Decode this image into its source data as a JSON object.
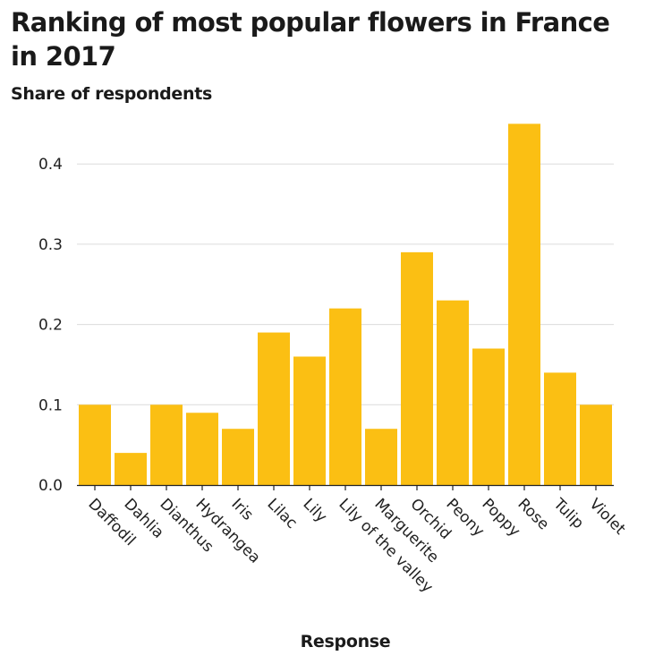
{
  "chart_data": {
    "type": "bar",
    "title": "Ranking of most popular flowers in France in 2017",
    "xlabel": "Response",
    "ylabel": "Share of respondents",
    "categories": [
      "Daffodil",
      "Dahlia",
      "Dianthus",
      "Hydrangea",
      "Iris",
      "Lilac",
      "Lily",
      "Lily of the valley",
      "Marguerite",
      "Orchid",
      "Peony",
      "Poppy",
      "Rose",
      "Tulip",
      "Violet"
    ],
    "values": [
      0.1,
      0.04,
      0.1,
      0.09,
      0.07,
      0.19,
      0.16,
      0.22,
      0.07,
      0.29,
      0.23,
      0.17,
      0.45,
      0.14,
      0.1
    ],
    "ylim": [
      0,
      0.45
    ],
    "yticks": [
      "0.0",
      "0.1",
      "0.2",
      "0.3",
      "0.4"
    ],
    "grid": true,
    "colors": {
      "bar": "#fbbf13",
      "grid": "#dcdcdc",
      "axis": "#222222"
    }
  }
}
